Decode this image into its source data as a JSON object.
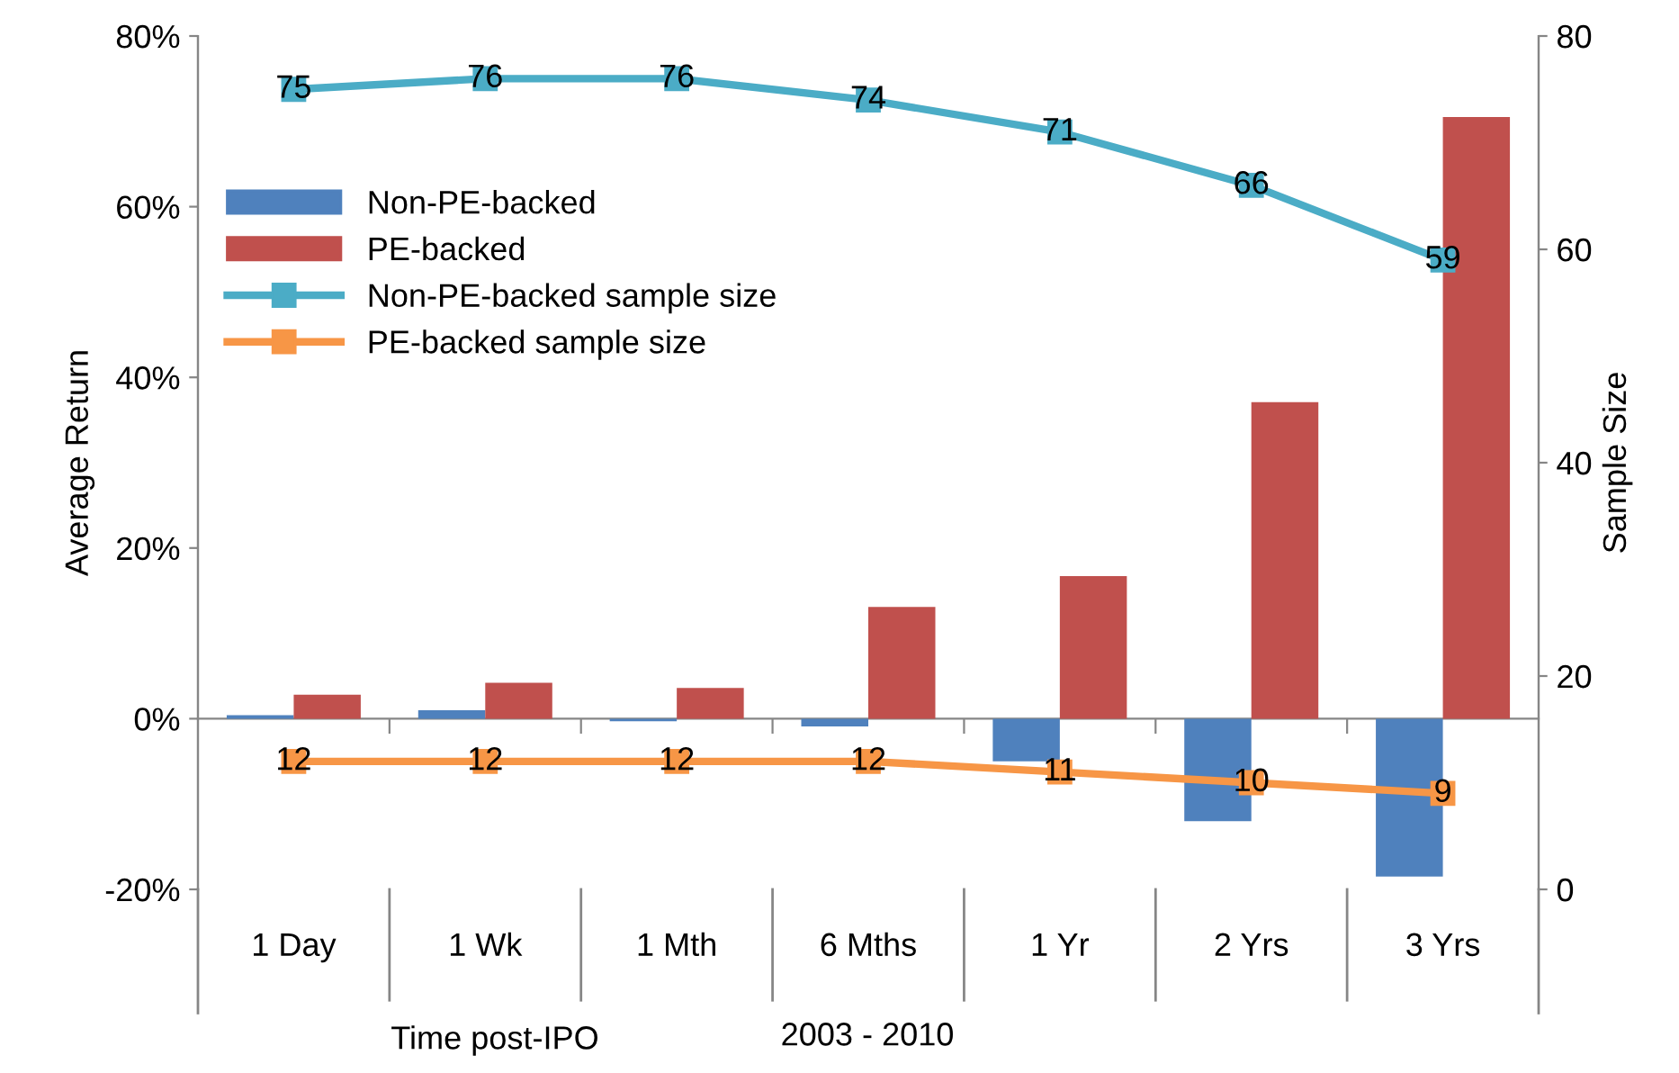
{
  "chart_data": {
    "type": "bar",
    "categories": [
      "1 Day",
      "1 Wk",
      "1 Mth",
      "6 Mths",
      "1 Yr",
      "2 Yrs",
      "3 Yrs"
    ],
    "series": [
      {
        "name": "Non-PE-backed",
        "color": "#4f81bd",
        "values": [
          0.4,
          1.0,
          -0.3,
          -0.9,
          -5,
          -12,
          -18.5
        ]
      },
      {
        "name": "PE-backed",
        "color": "#c0504d",
        "values": [
          2.8,
          4.2,
          3.6,
          13.1,
          16.7,
          37.1,
          70.5
        ]
      },
      {
        "name": "Non-PE-backed sample size",
        "type": "line",
        "axis": "y2",
        "color": "#4bacc6",
        "values": [
          75,
          76,
          76,
          74,
          71,
          66,
          59
        ],
        "data_labels": true
      },
      {
        "name": "PE-backed sample size",
        "type": "line",
        "axis": "y2",
        "color": "#f79646",
        "values": [
          12,
          12,
          12,
          12,
          11,
          10,
          9
        ],
        "data_labels": true
      }
    ],
    "ylim": [
      -20,
      80
    ],
    "yticks": [
      {
        "value": -20,
        "label": "-20%"
      },
      {
        "value": 0,
        "label": "0%"
      },
      {
        "value": 20,
        "label": "20%"
      },
      {
        "value": 40,
        "label": "40%"
      },
      {
        "value": 60,
        "label": "60%"
      },
      {
        "value": 80,
        "label": "80%"
      }
    ],
    "y2lim": [
      0,
      80
    ],
    "y2ticks": [
      0,
      20,
      40,
      60,
      80
    ],
    "ylabel": "Average Return",
    "y2label": "Sample Size",
    "xlabel": "Time post-IPO",
    "annotations": [
      "2003 - 2010"
    ],
    "marker": "square",
    "legend": "left"
  }
}
